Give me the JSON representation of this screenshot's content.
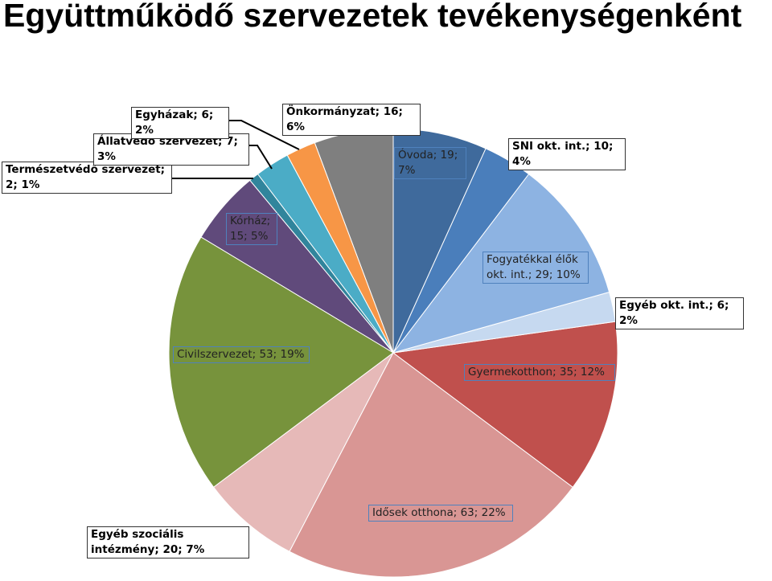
{
  "chart_data": {
    "type": "pie",
    "title": "Együttműködő szervezetek tevékenységenként",
    "values": [
      19,
      10,
      29,
      6,
      35,
      63,
      20,
      53,
      15,
      2,
      7,
      6,
      16
    ],
    "value_labels": [
      "Óvoda; 19; 7%",
      "SNI okt. int.; 10; 4%",
      "Fogyatékkal élők okt. int.; 29; 10%",
      "Egyéb okt. int.; 6; 2%",
      "Gyermekotthon; 35; 12%",
      "Idősek otthona; 63; 22%",
      "Egyéb szociális intézmény; 20; 7%",
      "Civilszervezet; 53; 19%",
      "Kórház; 15; 5%",
      "Természetvédő szervezet; 2; 1%",
      "Állatvédő szervezet; 7; 3%",
      "Egyházak; 6; 2%",
      "Önkormányzat; 16; 6%"
    ],
    "colors": [
      "#3f6a9c",
      "#4a7ebb",
      "#8db3e2",
      "#c6d9f0",
      "#c0504d",
      "#d99694",
      "#e6b9b8",
      "#77933c",
      "#604a7b",
      "#31859c",
      "#4bacc6",
      "#f79646",
      "#7f7f7f"
    ]
  }
}
